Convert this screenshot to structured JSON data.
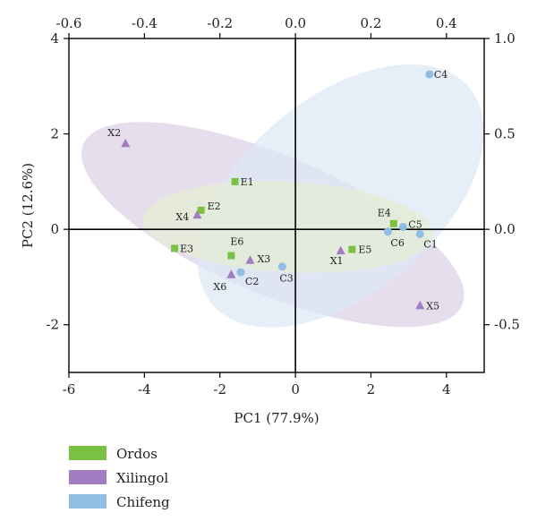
{
  "chart_data": {
    "type": "scatter",
    "title": "",
    "xlabel": "PC1 (77.9%)",
    "ylabel": "PC2 (12.6%)",
    "xlim": [
      -6,
      5
    ],
    "ylim": [
      -3,
      4
    ],
    "x_ticks": [
      -6,
      -4,
      -2,
      0,
      2,
      4
    ],
    "y_ticks": [
      -2,
      0,
      2,
      4
    ],
    "top_axis": {
      "lim": [
        -0.6,
        0.5
      ],
      "ticks": [
        -0.6,
        -0.4,
        -0.2,
        0.0,
        0.2,
        0.4
      ],
      "labels": [
        "-0.6",
        "-0.4",
        "-0.2",
        "0.0",
        "0.2",
        "0.4"
      ]
    },
    "right_axis": {
      "lim": [
        -0.75,
        1.0
      ],
      "ticks": [
        -0.5,
        0.0,
        0.5,
        1.0
      ],
      "labels": [
        "-0.5",
        "0.0",
        "0.5",
        "1.0"
      ]
    },
    "grid": false,
    "legend_position": "bottom-left",
    "series": [
      {
        "name": "Ordos",
        "color": "#7ac143",
        "marker": "square",
        "points": [
          {
            "label": "E1",
            "x": -1.6,
            "y": 1.0
          },
          {
            "label": "E2",
            "x": -2.5,
            "y": 0.4
          },
          {
            "label": "E3",
            "x": -3.2,
            "y": -0.4
          },
          {
            "label": "E4",
            "x": 2.6,
            "y": 0.12
          },
          {
            "label": "E5",
            "x": 1.5,
            "y": -0.42
          },
          {
            "label": "E6",
            "x": -1.7,
            "y": -0.55
          }
        ]
      },
      {
        "name": "Xilingol",
        "color": "#a07cc0",
        "marker": "triangle",
        "points": [
          {
            "label": "X1",
            "x": 1.2,
            "y": -0.45
          },
          {
            "label": "X2",
            "x": -4.5,
            "y": 1.8
          },
          {
            "label": "X3",
            "x": -1.2,
            "y": -0.65
          },
          {
            "label": "X4",
            "x": -2.6,
            "y": 0.3
          },
          {
            "label": "X5",
            "x": 3.3,
            "y": -1.6
          },
          {
            "label": "X6",
            "x": -1.7,
            "y": -0.95
          }
        ]
      },
      {
        "name": "Chifeng",
        "color": "#8fbde4",
        "marker": "circle",
        "points": [
          {
            "label": "C1",
            "x": 3.3,
            "y": -0.1
          },
          {
            "label": "C2",
            "x": -1.45,
            "y": -0.9
          },
          {
            "label": "C3",
            "x": -0.35,
            "y": -0.78
          },
          {
            "label": "C4",
            "x": 3.55,
            "y": 3.25
          },
          {
            "label": "C5",
            "x": 2.85,
            "y": 0.05
          },
          {
            "label": "C6",
            "x": 2.45,
            "y": -0.05
          }
        ]
      }
    ],
    "ellipses": [
      {
        "group": "Xilingol",
        "color": "#ddd0e6",
        "cx": -0.6,
        "cy": 0.1,
        "rx": 5.45,
        "ry": 1.45,
        "angle_deg": -23
      },
      {
        "group": "Chifeng",
        "color": "#dce8f4",
        "cx": 1.2,
        "cy": 0.7,
        "rx": 4.45,
        "ry": 2.05,
        "angle_deg": 40
      },
      {
        "group": "Ordos",
        "color": "#e4efd3",
        "cx": -0.2,
        "cy": 0.05,
        "rx": 3.85,
        "ry": 0.95,
        "angle_deg": -3
      }
    ]
  }
}
